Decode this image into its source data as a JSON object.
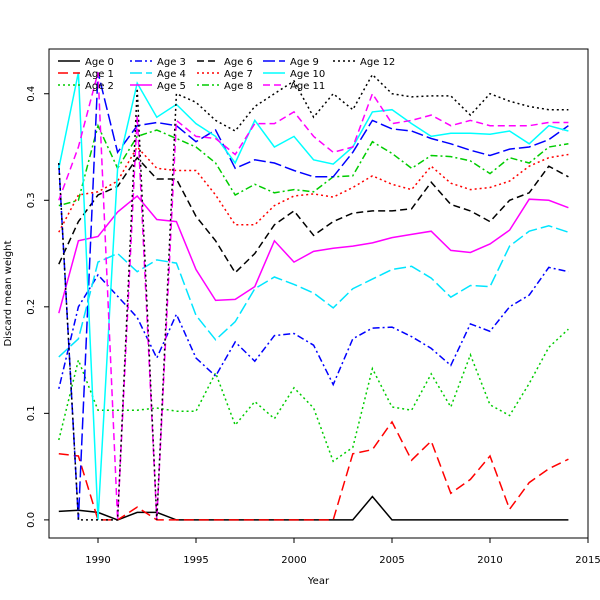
{
  "chart_data": {
    "type": "line",
    "xlabel": "Year",
    "ylabel": "Discard mean weight",
    "xlim": [
      1987.5,
      2015
    ],
    "ylim": [
      -0.017,
      0.442
    ],
    "xticks": [
      1990,
      1995,
      2000,
      2005,
      2010,
      2015
    ],
    "yticks": [
      0.0,
      0.1,
      0.2,
      0.3,
      0.4
    ],
    "ytick_labels": [
      "0.0",
      "0.1",
      "0.2",
      "0.3",
      "0.4"
    ],
    "grid": false,
    "legend_position": "top-left",
    "x": [
      1988,
      1989,
      1990,
      1991,
      1992,
      1993,
      1994,
      1995,
      1996,
      1997,
      1998,
      1999,
      2000,
      2001,
      2002,
      2003,
      2004,
      2005,
      2006,
      2007,
      2008,
      2009,
      2010,
      2011,
      2012,
      2013,
      2014
    ],
    "series": [
      {
        "name": "Age 0",
        "color": "#000000",
        "dash": "solid",
        "values": [
          0.008,
          0.009,
          0.007,
          0.0,
          0.007,
          0.007,
          0.0,
          0.0,
          0.0,
          0.0,
          0.0,
          0.0,
          0.0,
          0.0,
          0.0,
          0.0,
          0.022,
          0.0,
          0.0,
          0.0,
          0.0,
          0.0,
          0.0,
          0.0,
          0.0,
          0.0,
          0.0
        ]
      },
      {
        "name": "Age 1",
        "color": "#ff0000",
        "dash": "long",
        "values": [
          0.062,
          0.06,
          0.0,
          0.0,
          0.012,
          0.0,
          0.0,
          0.0,
          0.0,
          0.0,
          0.0,
          0.0,
          0.0,
          0.0,
          0.0,
          0.062,
          0.066,
          0.092,
          0.056,
          0.074,
          0.025,
          0.038,
          0.06,
          0.01,
          0.035,
          0.048,
          0.057
        ]
      },
      {
        "name": "Age 2",
        "color": "#00cc00",
        "dash": "dotted",
        "values": [
          0.075,
          0.15,
          0.103,
          0.103,
          0.103,
          0.105,
          0.102,
          0.102,
          0.138,
          0.089,
          0.111,
          0.095,
          0.124,
          0.105,
          0.055,
          0.068,
          0.142,
          0.106,
          0.103,
          0.137,
          0.106,
          0.155,
          0.108,
          0.098,
          0.128,
          0.162,
          0.179
        ]
      },
      {
        "name": "Age 3",
        "color": "#0000ff",
        "dash": "dotdash",
        "values": [
          0.123,
          0.2,
          0.23,
          0.21,
          0.19,
          0.152,
          0.193,
          0.152,
          0.135,
          0.167,
          0.149,
          0.173,
          0.175,
          0.164,
          0.127,
          0.17,
          0.18,
          0.181,
          0.172,
          0.161,
          0.145,
          0.184,
          0.177,
          0.2,
          0.211,
          0.237,
          0.233
        ]
      },
      {
        "name": "Age 4",
        "color": "#00e5ff",
        "dash": "longdash",
        "values": [
          0.153,
          0.17,
          0.242,
          0.25,
          0.233,
          0.244,
          0.241,
          0.192,
          0.169,
          0.186,
          0.217,
          0.228,
          0.221,
          0.213,
          0.199,
          0.217,
          0.226,
          0.235,
          0.238,
          0.227,
          0.209,
          0.22,
          0.219,
          0.257,
          0.271,
          0.276,
          0.27
        ]
      },
      {
        "name": "Age 5",
        "color": "#ff00ff",
        "dash": "solid",
        "values": [
          0.194,
          0.262,
          0.266,
          0.289,
          0.304,
          0.282,
          0.28,
          0.235,
          0.206,
          0.207,
          0.219,
          0.262,
          0.242,
          0.252,
          0.255,
          0.257,
          0.26,
          0.265,
          0.268,
          0.271,
          0.253,
          0.251,
          0.259,
          0.272,
          0.301,
          0.3,
          0.293
        ]
      },
      {
        "name": "Age 6",
        "color": "#000000",
        "dash": "dashed",
        "values": [
          0.24,
          0.28,
          0.305,
          0.313,
          0.34,
          0.32,
          0.32,
          0.285,
          0.262,
          0.232,
          0.25,
          0.277,
          0.29,
          0.267,
          0.28,
          0.288,
          0.29,
          0.29,
          0.292,
          0.317,
          0.296,
          0.29,
          0.28,
          0.3,
          0.307,
          0.332,
          0.322
        ]
      },
      {
        "name": "Age 7",
        "color": "#ff0000",
        "dash": "dotted",
        "values": [
          0.27,
          0.305,
          0.308,
          0.318,
          0.35,
          0.33,
          0.328,
          0.328,
          0.305,
          0.277,
          0.277,
          0.295,
          0.304,
          0.306,
          0.303,
          0.312,
          0.323,
          0.315,
          0.31,
          0.332,
          0.316,
          0.31,
          0.312,
          0.318,
          0.332,
          0.34,
          0.343
        ]
      },
      {
        "name": "Age 8",
        "color": "#00cc00",
        "dash": "dotdash",
        "values": [
          0.295,
          0.3,
          0.37,
          0.33,
          0.36,
          0.366,
          0.358,
          0.35,
          0.335,
          0.305,
          0.315,
          0.307,
          0.31,
          0.308,
          0.322,
          0.323,
          0.355,
          0.344,
          0.33,
          0.342,
          0.341,
          0.337,
          0.325,
          0.34,
          0.335,
          0.35,
          0.353
        ]
      },
      {
        "name": "Age 9",
        "color": "#0000ff",
        "dash": "longdash",
        "values": [
          0.335,
          0.0,
          0.42,
          0.345,
          0.37,
          0.373,
          0.37,
          0.355,
          0.366,
          0.33,
          0.338,
          0.335,
          0.328,
          0.322,
          0.322,
          0.345,
          0.375,
          0.367,
          0.365,
          0.358,
          0.353,
          0.347,
          0.342,
          0.348,
          0.35,
          0.357,
          0.37
        ]
      },
      {
        "name": "Age 10",
        "color": "#00ffff",
        "dash": "solid",
        "values": [
          0.33,
          0.42,
          0.0,
          0.33,
          0.41,
          0.378,
          0.39,
          0.372,
          0.36,
          0.335,
          0.375,
          0.35,
          0.36,
          0.338,
          0.334,
          0.35,
          0.383,
          0.385,
          0.372,
          0.36,
          0.363,
          0.363,
          0.362,
          0.365,
          0.353,
          0.37,
          0.365
        ]
      },
      {
        "name": "Age 11",
        "color": "#ff00ff",
        "dash": "dashed",
        "values": [
          0.3,
          0.35,
          0.42,
          0.0,
          0.38,
          0.0,
          0.375,
          0.36,
          0.358,
          0.343,
          0.372,
          0.372,
          0.383,
          0.36,
          0.345,
          0.35,
          0.4,
          0.372,
          0.375,
          0.38,
          0.37,
          0.375,
          0.37,
          0.37,
          0.37,
          0.373,
          0.373
        ]
      },
      {
        "name": "Age 12",
        "color": "#000000",
        "dash": "dotted",
        "values": [
          0.335,
          0.0,
          0.0,
          0.0,
          0.405,
          0.0,
          0.4,
          0.392,
          0.375,
          0.365,
          0.388,
          0.4,
          0.412,
          0.378,
          0.4,
          0.385,
          0.418,
          0.4,
          0.397,
          0.398,
          0.398,
          0.38,
          0.4,
          0.393,
          0.388,
          0.385,
          0.385
        ]
      }
    ]
  }
}
